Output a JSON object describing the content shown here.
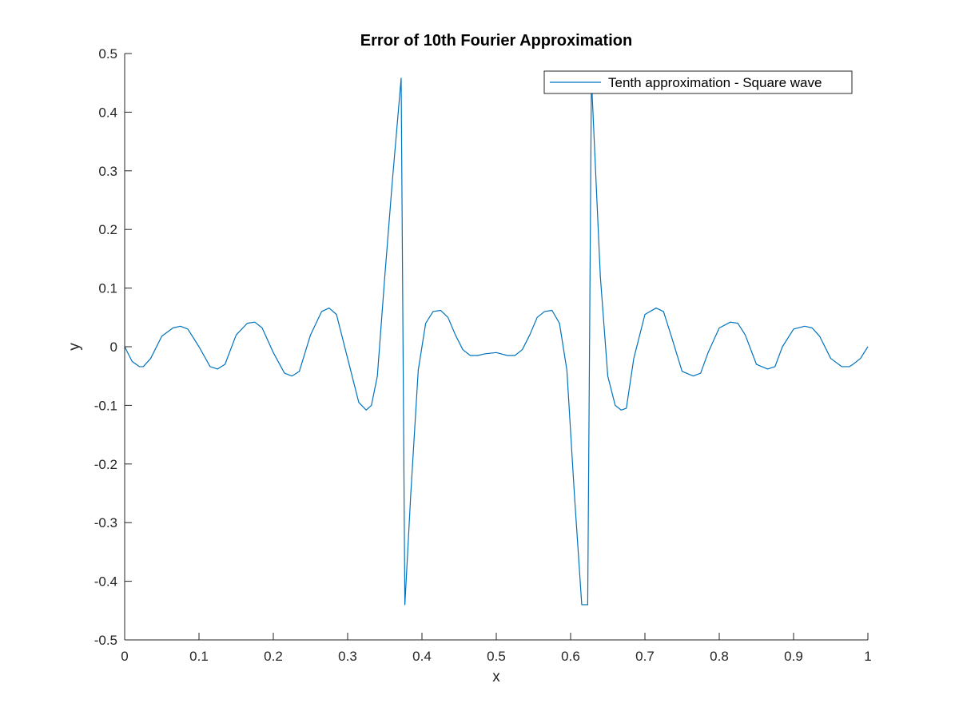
{
  "chart_data": {
    "type": "line",
    "title": "Error of 10th Fourier Approximation",
    "xlabel": "x",
    "ylabel": "y",
    "xlim": [
      0,
      1
    ],
    "ylim": [
      -0.5,
      0.5
    ],
    "xticks": [
      0,
      0.1,
      0.2,
      0.3,
      0.4,
      0.5,
      0.6,
      0.7,
      0.8,
      0.9,
      1
    ],
    "yticks": [
      -0.5,
      -0.4,
      -0.3,
      -0.2,
      -0.1,
      0,
      0.1,
      0.2,
      0.3,
      0.4,
      0.5
    ],
    "xtick_labels": [
      "0",
      "0.1",
      "0.2",
      "0.3",
      "0.4",
      "0.5",
      "0.6",
      "0.7",
      "0.8",
      "0.9",
      "1"
    ],
    "ytick_labels": [
      "-0.5",
      "-0.4",
      "-0.3",
      "-0.2",
      "-0.1",
      "0",
      "0.1",
      "0.2",
      "0.3",
      "0.4",
      "0.5"
    ],
    "grid": false,
    "legend_position": "top-right",
    "series": [
      {
        "name": "Tenth approximation - Square wave",
        "color": "#0072bd",
        "x": [
          0,
          0.01,
          0.02,
          0.025,
          0.035,
          0.05,
          0.065,
          0.075,
          0.085,
          0.1,
          0.115,
          0.125,
          0.135,
          0.15,
          0.165,
          0.175,
          0.185,
          0.2,
          0.215,
          0.225,
          0.235,
          0.25,
          0.265,
          0.275,
          0.285,
          0.3,
          0.315,
          0.325,
          0.332,
          0.34,
          0.35,
          0.36,
          0.372,
          0.377,
          0.385,
          0.395,
          0.405,
          0.415,
          0.425,
          0.435,
          0.445,
          0.455,
          0.465,
          0.475,
          0.485,
          0.5,
          0.515,
          0.525,
          0.535,
          0.545,
          0.555,
          0.565,
          0.575,
          0.585,
          0.595,
          0.605,
          0.615,
          0.623,
          0.628,
          0.64,
          0.65,
          0.66,
          0.668,
          0.675,
          0.685,
          0.7,
          0.715,
          0.725,
          0.735,
          0.75,
          0.765,
          0.775,
          0.785,
          0.8,
          0.815,
          0.825,
          0.835,
          0.85,
          0.865,
          0.875,
          0.885,
          0.9,
          0.915,
          0.925,
          0.935,
          0.95,
          0.965,
          0.975,
          0.98,
          0.99,
          1
        ],
        "y": [
          0,
          -0.025,
          -0.034,
          -0.034,
          -0.02,
          0.018,
          0.032,
          0.035,
          0.03,
          0.0,
          -0.034,
          -0.038,
          -0.03,
          0.02,
          0.04,
          0.042,
          0.032,
          -0.01,
          -0.045,
          -0.05,
          -0.042,
          0.02,
          0.06,
          0.066,
          0.055,
          -0.02,
          -0.095,
          -0.108,
          -0.1,
          -0.05,
          0.12,
          0.28,
          0.458,
          -0.44,
          -0.25,
          -0.04,
          0.04,
          0.06,
          0.062,
          0.05,
          0.02,
          -0.005,
          -0.015,
          -0.015,
          -0.012,
          -0.01,
          -0.015,
          -0.015,
          -0.005,
          0.02,
          0.05,
          0.06,
          0.062,
          0.04,
          -0.04,
          -0.25,
          -0.44,
          -0.44,
          0.458,
          0.12,
          -0.05,
          -0.1,
          -0.108,
          -0.105,
          -0.02,
          0.055,
          0.066,
          0.06,
          0.02,
          -0.042,
          -0.05,
          -0.045,
          -0.01,
          0.032,
          0.042,
          0.04,
          0.02,
          -0.03,
          -0.038,
          -0.034,
          0.0,
          0.03,
          0.035,
          0.032,
          0.018,
          -0.02,
          -0.034,
          -0.034,
          -0.03,
          -0.02,
          0
        ]
      }
    ]
  }
}
